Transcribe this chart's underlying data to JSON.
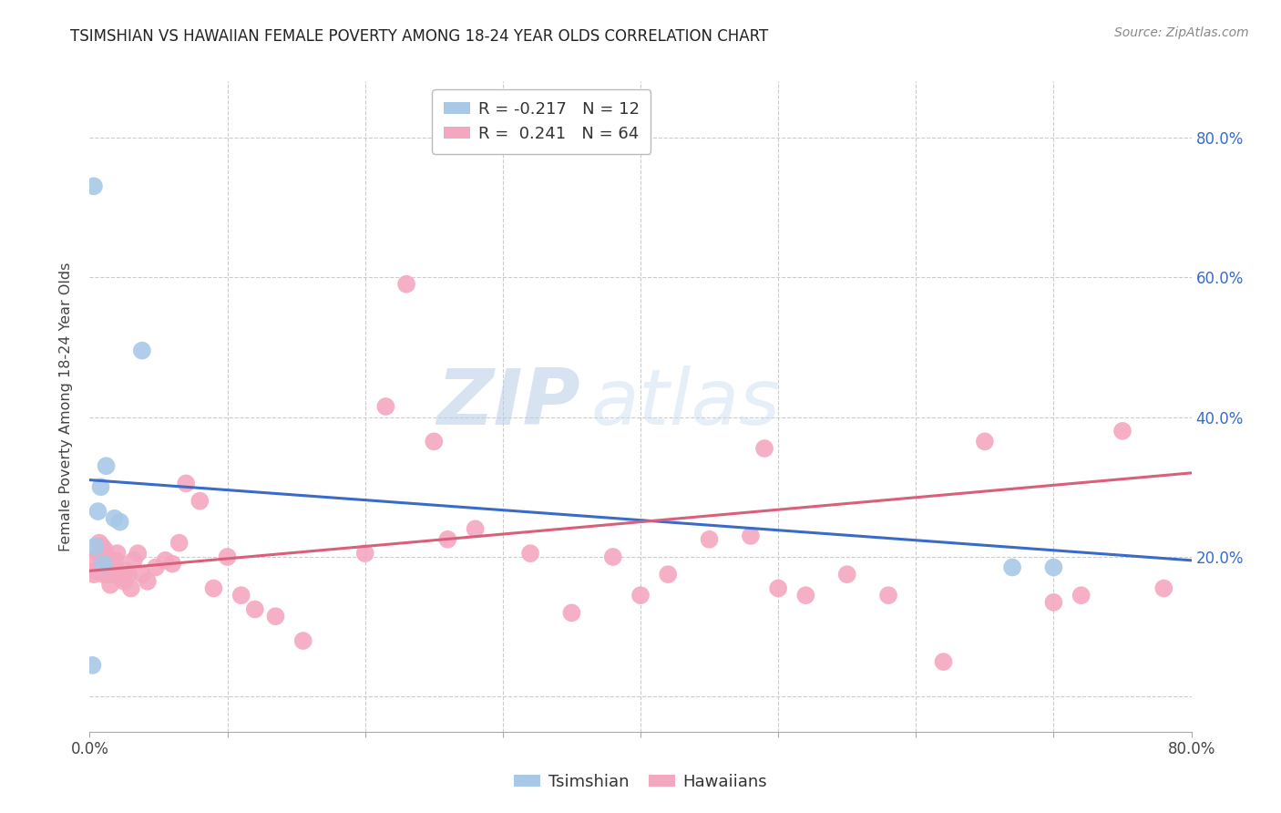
{
  "title": "TSIMSHIAN VS HAWAIIAN FEMALE POVERTY AMONG 18-24 YEAR OLDS CORRELATION CHART",
  "source": "Source: ZipAtlas.com",
  "ylabel": "Female Poverty Among 18-24 Year Olds",
  "xlim": [
    0.0,
    0.8
  ],
  "ylim": [
    -0.05,
    0.88
  ],
  "yticks": [
    0.0,
    0.2,
    0.4,
    0.6,
    0.8
  ],
  "ytick_labels": [
    "",
    "20.0%",
    "40.0%",
    "60.0%",
    "80.0%"
  ],
  "xticks": [
    0.0,
    0.1,
    0.2,
    0.3,
    0.4,
    0.5,
    0.6,
    0.7,
    0.8
  ],
  "xtick_labels": [
    "0.0%",
    "",
    "",
    "",
    "",
    "",
    "",
    "",
    "80.0%"
  ],
  "tsimshian_color": "#a8c8e8",
  "hawaiian_color": "#f4a8c0",
  "tsimshian_line_color": "#3a6bc8",
  "hawaiian_line_color": "#d8607a",
  "watermark_zip": "ZIP",
  "watermark_atlas": "atlas",
  "tsimshian_x": [
    0.003,
    0.004,
    0.006,
    0.008,
    0.01,
    0.012,
    0.018,
    0.022,
    0.038,
    0.67,
    0.7,
    0.002
  ],
  "tsimshian_y": [
    0.73,
    0.215,
    0.265,
    0.3,
    0.19,
    0.33,
    0.255,
    0.25,
    0.495,
    0.185,
    0.185,
    0.045
  ],
  "hawaiian_x": [
    0.003,
    0.004,
    0.005,
    0.006,
    0.007,
    0.008,
    0.009,
    0.01,
    0.01,
    0.011,
    0.012,
    0.013,
    0.014,
    0.015,
    0.016,
    0.018,
    0.019,
    0.02,
    0.022,
    0.023,
    0.025,
    0.026,
    0.028,
    0.03,
    0.032,
    0.035,
    0.038,
    0.042,
    0.048,
    0.055,
    0.06,
    0.065,
    0.07,
    0.08,
    0.09,
    0.1,
    0.11,
    0.12,
    0.135,
    0.155,
    0.2,
    0.215,
    0.23,
    0.25,
    0.26,
    0.28,
    0.32,
    0.35,
    0.38,
    0.4,
    0.42,
    0.45,
    0.48,
    0.49,
    0.5,
    0.52,
    0.55,
    0.58,
    0.62,
    0.65,
    0.7,
    0.72,
    0.75,
    0.78
  ],
  "hawaiian_y": [
    0.175,
    0.18,
    0.195,
    0.205,
    0.22,
    0.185,
    0.215,
    0.175,
    0.195,
    0.21,
    0.185,
    0.175,
    0.195,
    0.16,
    0.175,
    0.185,
    0.195,
    0.205,
    0.175,
    0.17,
    0.165,
    0.18,
    0.175,
    0.155,
    0.195,
    0.205,
    0.175,
    0.165,
    0.185,
    0.195,
    0.19,
    0.22,
    0.305,
    0.28,
    0.155,
    0.2,
    0.145,
    0.125,
    0.115,
    0.08,
    0.205,
    0.415,
    0.59,
    0.365,
    0.225,
    0.24,
    0.205,
    0.12,
    0.2,
    0.145,
    0.175,
    0.225,
    0.23,
    0.355,
    0.155,
    0.145,
    0.175,
    0.145,
    0.05,
    0.365,
    0.135,
    0.145,
    0.38,
    0.155
  ],
  "ts_line_x0": 0.0,
  "ts_line_y0": 0.31,
  "ts_line_x1": 0.8,
  "ts_line_y1": 0.195,
  "haw_line_x0": 0.0,
  "haw_line_y0": 0.18,
  "haw_line_x1": 0.8,
  "haw_line_y1": 0.32,
  "legend1_label": "R = -0.217",
  "legend1_n": "N = 12",
  "legend2_label": "R =  0.241",
  "legend2_n": "N = 64"
}
